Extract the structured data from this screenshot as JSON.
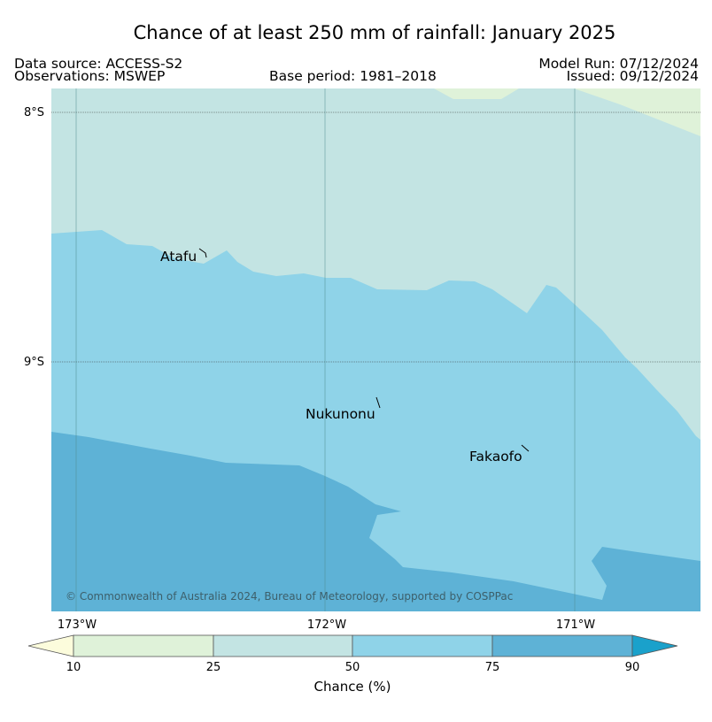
{
  "header": {
    "title": "Chance of at least 250 mm of rainfall: January 2025",
    "data_source": "Data source: ACCESS-S2",
    "observations": "Observations: MSWEP",
    "base_period": "Base period: 1981–2018",
    "model_run": "Model Run: 07/12/2024",
    "issued": "Issued: 09/12/2024"
  },
  "map": {
    "lat_labels": [
      "8°S",
      "9°S"
    ],
    "lon_labels": [
      "173°W",
      "172°W",
      "171°W"
    ],
    "places": [
      {
        "name": "Atafu",
        "lon": -172.52,
        "lat": -8.55
      },
      {
        "name": "Nukunonu",
        "lon": -171.83,
        "lat": -9.18
      },
      {
        "name": "Fakaofo",
        "lon": -171.22,
        "lat": -9.37
      }
    ],
    "copyright": "© Commonwealth of Australia 2024, Bureau of Meteorology, supported by COSPPac",
    "chance_categories": [
      {
        "range": "<10",
        "color": "#fcfcdc"
      },
      {
        "range": "10–25",
        "color": "#dff2d9"
      },
      {
        "range": "25–50",
        "color": "#c3e4e3"
      },
      {
        "range": "50–75",
        "color": "#8fd3e8"
      },
      {
        "range": "75–90",
        "color": "#5eb2d6"
      },
      {
        "range": ">90",
        "color": "#1aa1cb"
      }
    ]
  },
  "colorbar": {
    "title": "Chance (%)",
    "ticks": [
      "10",
      "25",
      "50",
      "75",
      "90"
    ]
  }
}
